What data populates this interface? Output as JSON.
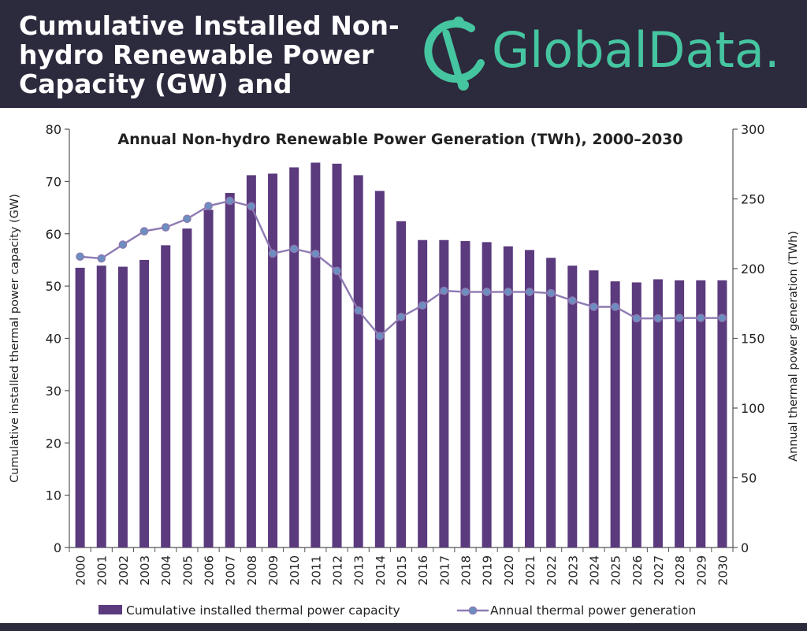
{
  "header": {
    "title": "Cumulative Installed Non-hydro Renewable Power Capacity (GW) and",
    "logo_text": "GlobalData.",
    "background_color": "#2c2a3d",
    "logo_color": "#45c5a0"
  },
  "chart_data": {
    "type": "bar",
    "title": "Annual Non-hydro Renewable Power Generation (TWh), 2000–2030",
    "categories": [
      "2000",
      "2001",
      "2002",
      "2003",
      "2004",
      "2005",
      "2006",
      "2007",
      "2008",
      "2009",
      "2010",
      "2011",
      "2012",
      "2013",
      "2014",
      "2015",
      "2016",
      "2017",
      "2018",
      "2019",
      "2020",
      "2021",
      "2022",
      "2023",
      "2024",
      "2025",
      "2026",
      "2027",
      "2028",
      "2029",
      "2030"
    ],
    "series": [
      {
        "name": "Cumulative installed thermal power capacity",
        "type": "bar",
        "axis": "left",
        "color": "#5b3a7e",
        "values": [
          53.5,
          53.9,
          53.7,
          55.0,
          57.8,
          61.0,
          64.6,
          67.8,
          71.2,
          71.5,
          72.7,
          73.6,
          73.4,
          71.2,
          68.2,
          62.4,
          58.8,
          58.8,
          58.6,
          58.4,
          57.6,
          56.9,
          55.4,
          53.9,
          53.0,
          50.9,
          50.7,
          51.3,
          51.1,
          51.1,
          51.1
        ]
      },
      {
        "name": "Annual thermal power generation",
        "type": "line",
        "axis": "right",
        "color": "#8e7ab2",
        "marker_color": "#6a8fc0",
        "values": [
          208.6,
          207.3,
          217.2,
          226.8,
          229.6,
          235.7,
          244.9,
          248.6,
          244.7,
          210.8,
          214.2,
          210.6,
          198.4,
          170.0,
          151.6,
          165.3,
          173.6,
          184.1,
          183.3,
          183.3,
          183.3,
          183.3,
          182.4,
          177.1,
          172.6,
          172.6,
          164.3,
          164.3,
          164.6,
          164.6,
          164.6
        ]
      }
    ],
    "y_left": {
      "label": "Cumulative installed thermal power capacity (GW)",
      "min": 0,
      "max": 80,
      "ticks": [
        "0",
        "10",
        "20",
        "30",
        "40",
        "50",
        "60",
        "70",
        "80"
      ]
    },
    "y_right": {
      "label": "Annual thermal power generation (TWh)",
      "min": 0,
      "max": 300,
      "ticks": [
        "0",
        "50",
        "100",
        "150",
        "200",
        "250",
        "300"
      ]
    },
    "grid": false,
    "legend_position": "bottom"
  }
}
